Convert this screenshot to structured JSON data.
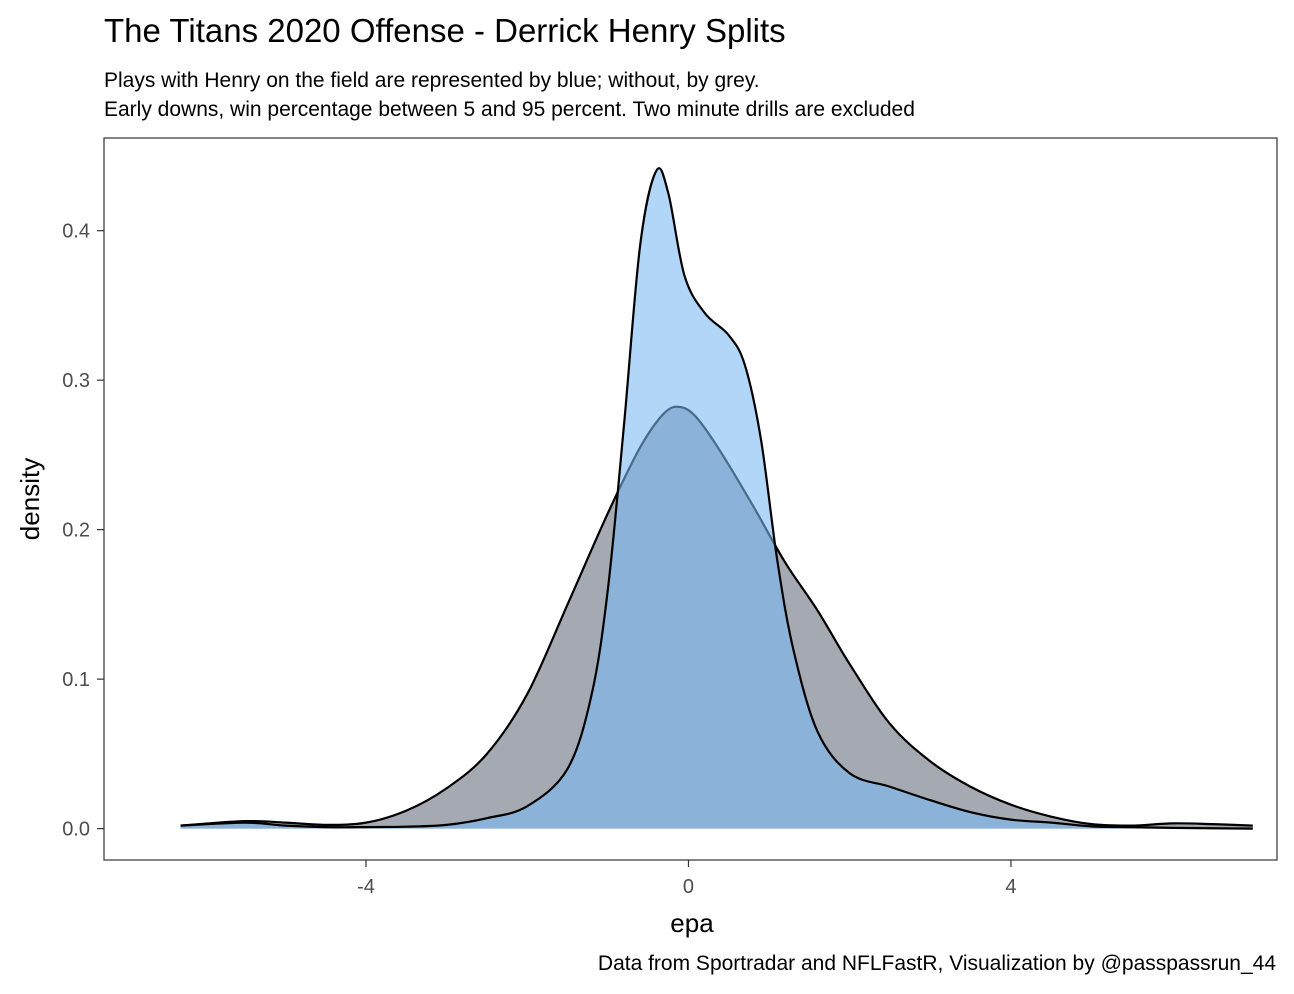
{
  "chart_data": {
    "type": "area",
    "title": "The Titans 2020 Offense - Derrick Henry Splits",
    "subtitle_lines": [
      "Plays with Henry on the field are represented by blue; without, by grey.",
      "Early downs, win percentage between 5 and 95 percent. Two minute drills are excluded"
    ],
    "caption": "Data from Sportradar and NFLFastR, Visualization by @passpassrun_44",
    "xlabel": "epa",
    "ylabel": "density",
    "xlim": [
      -7.25,
      7.3
    ],
    "ylim": [
      -0.021,
      0.462
    ],
    "x_ticks": [
      -4,
      0,
      4
    ],
    "x_tick_labels": [
      "-4",
      "0",
      "4"
    ],
    "y_ticks": [
      0.0,
      0.1,
      0.2,
      0.3,
      0.4
    ],
    "y_tick_labels": [
      "0.0",
      "0.1",
      "0.2",
      "0.3",
      "0.4"
    ],
    "grid": false,
    "legend": "none",
    "series": [
      {
        "color": "#6c7583",
        "fill_opacity": 0.62,
        "points": [
          [
            -6.3,
            0.002
          ],
          [
            -5.5,
            0.005
          ],
          [
            -5.0,
            0.004
          ],
          [
            -4.5,
            0.0025
          ],
          [
            -4.0,
            0.004
          ],
          [
            -3.5,
            0.012
          ],
          [
            -3.0,
            0.027
          ],
          [
            -2.5,
            0.05
          ],
          [
            -2.0,
            0.09
          ],
          [
            -1.5,
            0.15
          ],
          [
            -1.0,
            0.211
          ],
          [
            -0.6,
            0.255
          ],
          [
            -0.3,
            0.278
          ],
          [
            -0.1,
            0.282
          ],
          [
            0.1,
            0.275
          ],
          [
            0.4,
            0.252
          ],
          [
            0.8,
            0.216
          ],
          [
            1.2,
            0.178
          ],
          [
            1.6,
            0.146
          ],
          [
            2.0,
            0.11
          ],
          [
            2.5,
            0.07
          ],
          [
            3.0,
            0.045
          ],
          [
            3.5,
            0.028
          ],
          [
            4.0,
            0.016
          ],
          [
            4.5,
            0.008
          ],
          [
            5.0,
            0.003
          ],
          [
            5.5,
            0.002
          ],
          [
            6.0,
            0.0035
          ],
          [
            6.5,
            0.003
          ],
          [
            7.0,
            0.002
          ]
        ]
      },
      {
        "color": "#79b8f3",
        "fill_opacity": 0.58,
        "points": [
          [
            -6.3,
            0.002
          ],
          [
            -5.5,
            0.004
          ],
          [
            -5.0,
            0.002
          ],
          [
            -4.5,
            0.001
          ],
          [
            -4.0,
            0.001
          ],
          [
            -3.5,
            0.0013
          ],
          [
            -3.0,
            0.0025
          ],
          [
            -2.5,
            0.007
          ],
          [
            -2.0,
            0.015
          ],
          [
            -1.5,
            0.04
          ],
          [
            -1.2,
            0.09
          ],
          [
            -1.0,
            0.16
          ],
          [
            -0.8,
            0.27
          ],
          [
            -0.6,
            0.39
          ],
          [
            -0.4,
            0.44
          ],
          [
            -0.25,
            0.425
          ],
          [
            -0.05,
            0.37
          ],
          [
            0.2,
            0.345
          ],
          [
            0.5,
            0.33
          ],
          [
            0.7,
            0.31
          ],
          [
            0.9,
            0.26
          ],
          [
            1.1,
            0.18
          ],
          [
            1.3,
            0.12
          ],
          [
            1.6,
            0.065
          ],
          [
            2.0,
            0.037
          ],
          [
            2.5,
            0.028
          ],
          [
            3.0,
            0.019
          ],
          [
            3.5,
            0.011
          ],
          [
            4.0,
            0.006
          ],
          [
            4.5,
            0.004
          ],
          [
            5.0,
            0.0015
          ],
          [
            5.5,
            0.001
          ],
          [
            6.0,
            0.0005
          ],
          [
            7.0,
            0.0
          ]
        ]
      }
    ]
  }
}
